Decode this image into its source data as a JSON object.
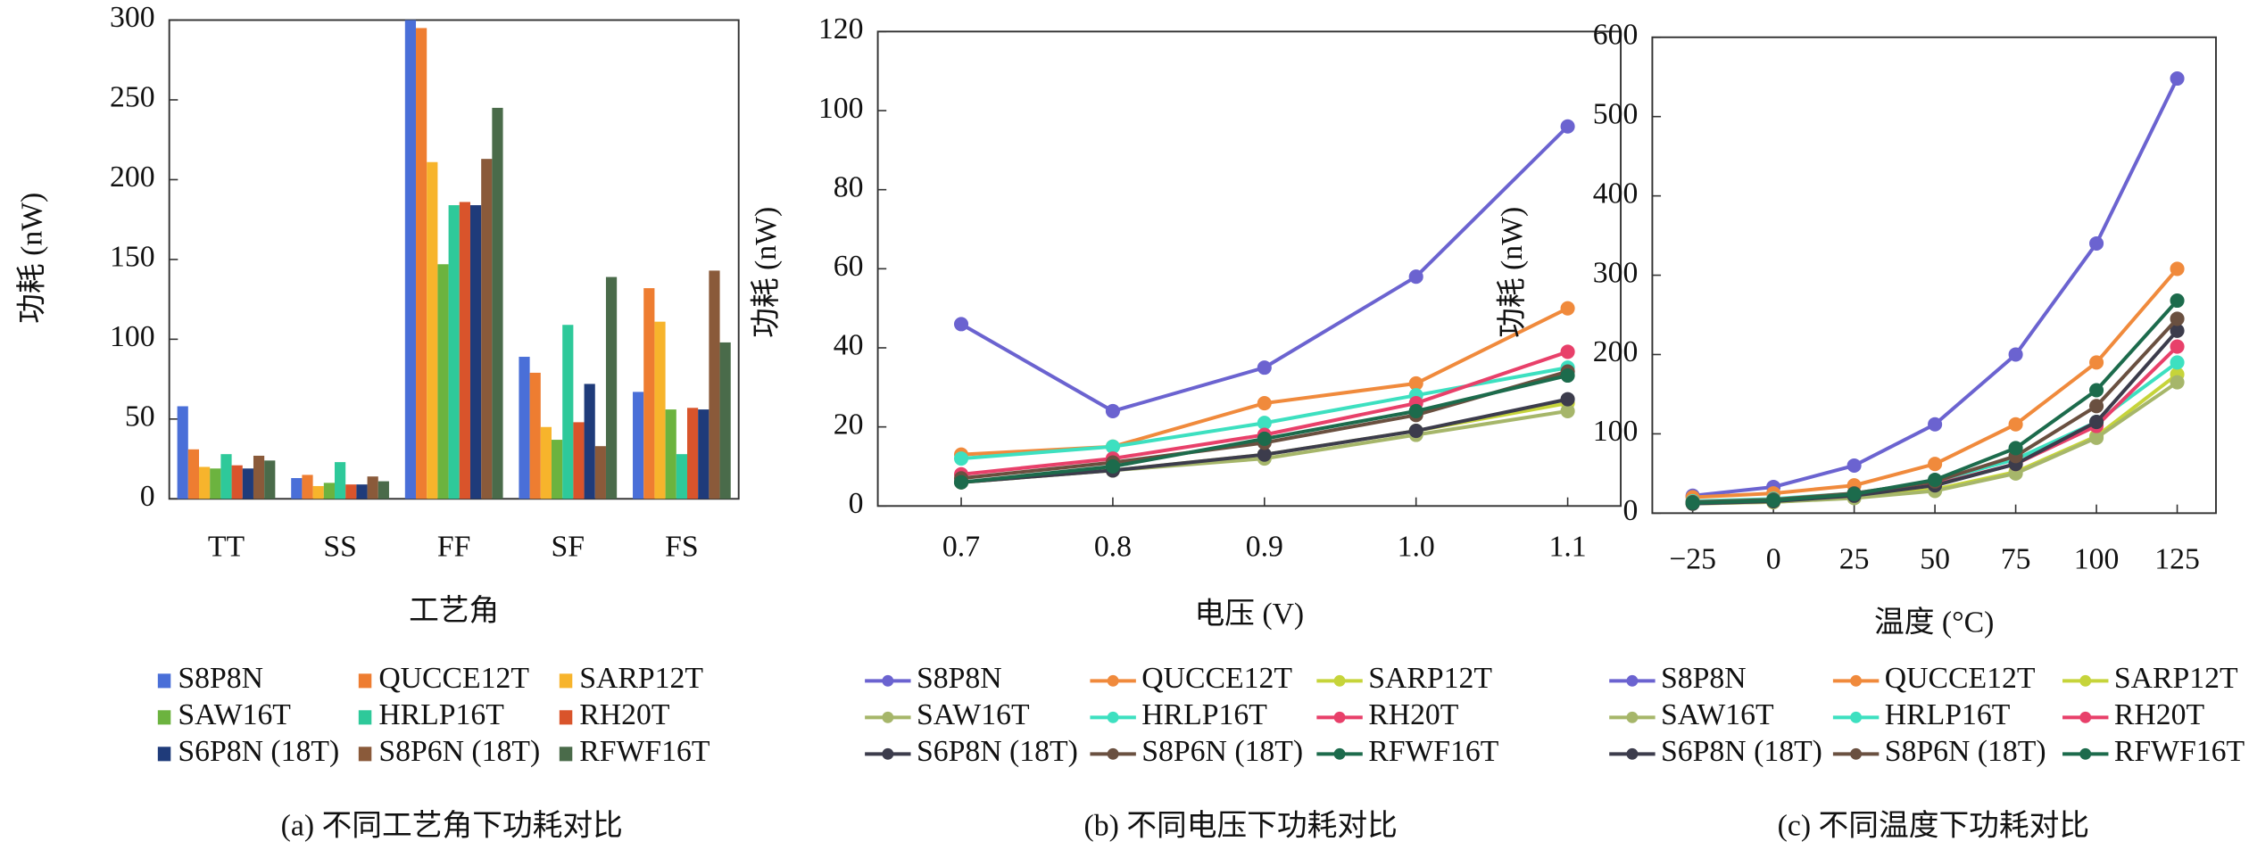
{
  "chart_data": [
    {
      "type": "bar",
      "caption": "(a) 不同工艺角下功耗对比",
      "x_label": "工艺角",
      "y_label": "功耗 (nW)",
      "categories": [
        "TT",
        "SS",
        "FF",
        "SF",
        "FS"
      ],
      "ylim": [
        0,
        300
      ],
      "yticks": [
        0,
        50,
        100,
        150,
        200,
        250,
        300
      ],
      "legend": "below",
      "series": [
        {
          "name": "S8P8N",
          "color": "#4a6fd8",
          "values": [
            58,
            13,
            300,
            89,
            67
          ]
        },
        {
          "name": "QUCCE12T",
          "color": "#ee7d31",
          "values": [
            31,
            15,
            295,
            79,
            132
          ]
        },
        {
          "name": "SARP12T",
          "color": "#f7b42c",
          "values": [
            20,
            8,
            211,
            45,
            111
          ]
        },
        {
          "name": "SAW16T",
          "color": "#6cb33f",
          "values": [
            19,
            10,
            147,
            37,
            56
          ]
        },
        {
          "name": "HRLP16T",
          "color": "#2ec99a",
          "values": [
            28,
            23,
            184,
            109,
            28
          ]
        },
        {
          "name": "RH20T",
          "color": "#d9542b",
          "values": [
            21,
            9,
            186,
            48,
            57
          ]
        },
        {
          "name": "S6P8N (18T)",
          "color": "#1f3b7a",
          "values": [
            19,
            9,
            184,
            72,
            56
          ]
        },
        {
          "name": "S8P6N (18T)",
          "color": "#8a5a3a",
          "values": [
            27,
            14,
            213,
            33,
            143
          ]
        },
        {
          "name": "RFWF16T",
          "color": "#4a6b4a",
          "values": [
            24,
            11,
            245,
            139,
            98
          ]
        }
      ]
    },
    {
      "type": "line",
      "caption": "(b) 不同电压下功耗对比",
      "x_label": "电压 (V)",
      "y_label": "功耗 (nW)",
      "x": [
        0.7,
        0.8,
        0.9,
        1.0,
        1.1
      ],
      "xlim": [
        0.645,
        1.135
      ],
      "xticks": [
        0.7,
        0.8,
        0.9,
        {
          "value": 1.0,
          "label": "1.0"
        },
        1.1
      ],
      "ylim": [
        0,
        120
      ],
      "yticks": [
        0,
        20,
        40,
        60,
        80,
        100,
        120
      ],
      "legend": "below",
      "series": [
        {
          "name": "S8P8N",
          "color": "#6b63d0",
          "values": [
            46,
            24,
            35,
            58,
            96
          ]
        },
        {
          "name": "QUCCE12T",
          "color": "#f08a3c",
          "values": [
            13,
            15,
            26,
            31,
            50
          ]
        },
        {
          "name": "SARP12T",
          "color": "#c6d43a",
          "values": [
            6,
            9,
            13,
            19,
            26
          ]
        },
        {
          "name": "SAW16T",
          "color": "#a6b66a",
          "values": [
            6,
            9,
            12,
            18,
            24
          ]
        },
        {
          "name": "HRLP16T",
          "color": "#3de0c0",
          "values": [
            12,
            15,
            21,
            28,
            35
          ]
        },
        {
          "name": "RH20T",
          "color": "#e8406a",
          "values": [
            8,
            12,
            18,
            26,
            39
          ]
        },
        {
          "name": "S6P8N (18T)",
          "color": "#3c3c4c",
          "values": [
            6,
            9,
            13,
            19,
            27
          ]
        },
        {
          "name": "S8P6N (18T)",
          "color": "#6a5040",
          "values": [
            7,
            11,
            16,
            23,
            34
          ]
        },
        {
          "name": "RFWF16T",
          "color": "#1c6b4c",
          "values": [
            6,
            10,
            17,
            24,
            33
          ]
        }
      ]
    },
    {
      "type": "line",
      "caption": "(c) 不同温度下功耗对比",
      "x_label": "温度 (°C)",
      "y_label": "功耗 (nW)",
      "x": [
        -25,
        0,
        25,
        50,
        75,
        100,
        125
      ],
      "xlim": [
        -37.5,
        137
      ],
      "xticks": [
        {
          "value": -25,
          "label": "−25"
        },
        0,
        25,
        50,
        75,
        100,
        125
      ],
      "ylim": [
        0,
        600
      ],
      "yticks": [
        0,
        100,
        200,
        300,
        400,
        500,
        600
      ],
      "legend": "below",
      "series": [
        {
          "name": "S8P8N",
          "color": "#6b63d0",
          "values": [
            22,
            33,
            60,
            112,
            200,
            340,
            548
          ]
        },
        {
          "name": "QUCCE12T",
          "color": "#f08a3c",
          "values": [
            20,
            25,
            35,
            62,
            112,
            190,
            308
          ]
        },
        {
          "name": "SARP12T",
          "color": "#c6d43a",
          "values": [
            12,
            14,
            20,
            30,
            52,
            97,
            175
          ]
        },
        {
          "name": "SAW16T",
          "color": "#a6b66a",
          "values": [
            12,
            14,
            19,
            28,
            50,
            95,
            165
          ]
        },
        {
          "name": "HRLP16T",
          "color": "#3de0c0",
          "values": [
            15,
            18,
            25,
            40,
            68,
            115,
            190
          ]
        },
        {
          "name": "RH20T",
          "color": "#e8406a",
          "values": [
            13,
            16,
            23,
            36,
            62,
            110,
            210
          ]
        },
        {
          "name": "S6P8N (18T)",
          "color": "#3c3c4c",
          "values": [
            12,
            15,
            22,
            35,
            62,
            115,
            230
          ]
        },
        {
          "name": "S8P6N (18T)",
          "color": "#6a5040",
          "values": [
            14,
            17,
            25,
            40,
            72,
            135,
            245
          ]
        },
        {
          "name": "RFWF16T",
          "color": "#1c6b4c",
          "values": [
            13,
            16,
            24,
            42,
            82,
            155,
            268
          ]
        }
      ]
    }
  ]
}
